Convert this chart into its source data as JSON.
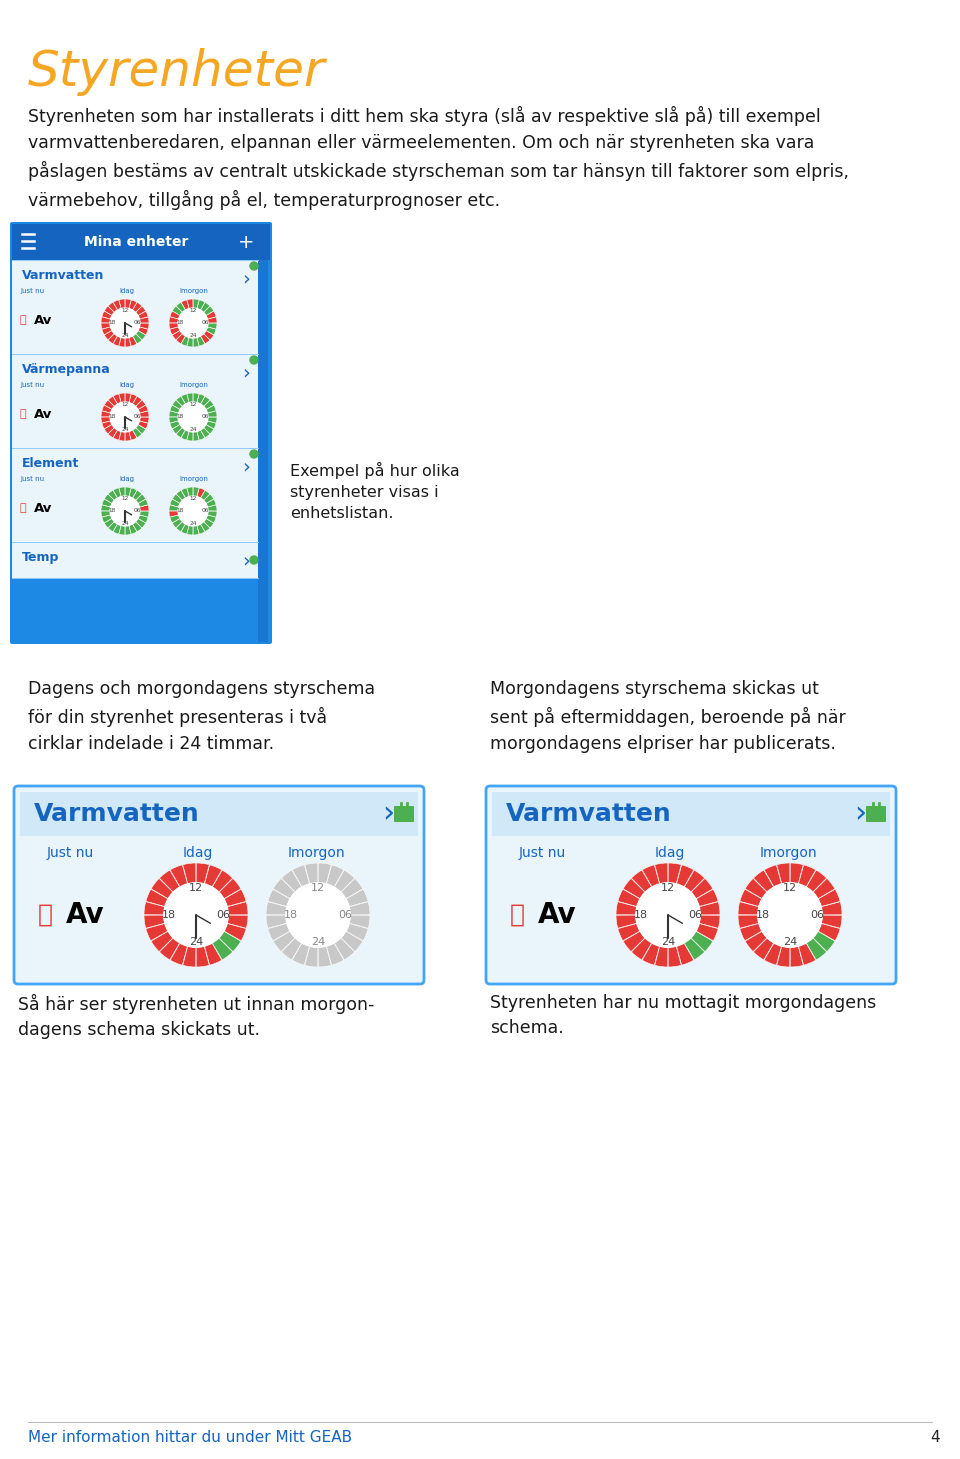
{
  "title": "Styrenheter",
  "title_color": "#F5A623",
  "body_text1": "Styrenheten som har installerats i ditt hem ska styra (slå av respektive slå på) till exempel\nvarmvattenberedaren, elpannan eller värmeelementen. Om och när styrenheten ska vara\npåslagen bestäms av centralt utskickade styrscheman som tar hänsyn till faktorer som elpris,\nvärmebehov, tillgång på el, temperaturprognoser etc.",
  "phone_header_text": "Mina enheter",
  "caption_text": "Exempel på hur olika\nstyrenheter visas i\nenhetslistan.",
  "section2_left_text": "Dagens och morgondagens styrschema\nför din styrenhet presenteras i två\ncirklar indelade i 24 timmar.",
  "section2_right_text": "Morgondagens styrschema skickas ut\nsent på eftermiddagen, beroende på när\nmorgondagens elpriser har publicerats.",
  "card1_title": "Varmvatten",
  "card2_title": "Varmvatten",
  "caption_bottom_left": "Så här ser styrenheten ut innan morgon-\ndagens schema skickats ut.",
  "caption_bottom_right": "Styrenheten har nu mottagit morgondagens\nschema.",
  "footer_text": "Mer information hittar du under Mitt GEAB",
  "footer_page": "4",
  "footer_color": "#1565C0",
  "phone_rows": [
    {
      "name": "Varmvatten",
      "idag": [
        0,
        0,
        1,
        1,
        0,
        0,
        0,
        0,
        0,
        0,
        0,
        0,
        0,
        0,
        0,
        0,
        0,
        0,
        0,
        0,
        0,
        0,
        0,
        0
      ],
      "imorgon": [
        1,
        1,
        0,
        0,
        1,
        1,
        0,
        0,
        1,
        1,
        1,
        1,
        0,
        0,
        1,
        1,
        0,
        0,
        0,
        0,
        0,
        0,
        1,
        1
      ],
      "green_dot": true
    },
    {
      "name": "Värmepanna",
      "idag": [
        0,
        0,
        1,
        1,
        0,
        0,
        0,
        0,
        0,
        0,
        0,
        0,
        0,
        0,
        0,
        0,
        0,
        0,
        0,
        0,
        0,
        0,
        0,
        0
      ],
      "imorgon": [
        1,
        1,
        1,
        1,
        1,
        1,
        1,
        1,
        1,
        1,
        1,
        1,
        1,
        1,
        1,
        1,
        1,
        1,
        1,
        1,
        1,
        1,
        1,
        1
      ],
      "green_dot": true
    },
    {
      "name": "Element",
      "idag": [
        1,
        1,
        1,
        1,
        1,
        1,
        0,
        1,
        1,
        1,
        1,
        1,
        1,
        1,
        1,
        1,
        1,
        1,
        1,
        1,
        1,
        1,
        1,
        1
      ],
      "imorgon": [
        1,
        1,
        1,
        1,
        1,
        1,
        1,
        1,
        1,
        1,
        0,
        1,
        1,
        1,
        1,
        1,
        1,
        1,
        0,
        1,
        1,
        1,
        1,
        1
      ],
      "green_dot": true
    },
    {
      "name": "Temp",
      "idag": null,
      "imorgon": null,
      "green_dot": true
    }
  ],
  "card1_idag": [
    0,
    0,
    1,
    1,
    0,
    0,
    0,
    0,
    0,
    0,
    0,
    0,
    0,
    0,
    0,
    0,
    0,
    0,
    0,
    0,
    0,
    0,
    0,
    0
  ],
  "card1_imorgon_gray": true,
  "card2_idag": [
    0,
    0,
    1,
    1,
    0,
    0,
    0,
    0,
    0,
    0,
    0,
    0,
    0,
    0,
    0,
    0,
    0,
    0,
    0,
    0,
    0,
    0,
    0,
    0
  ],
  "card2_imorgon": [
    0,
    0,
    1,
    1,
    0,
    0,
    0,
    0,
    0,
    0,
    0,
    0,
    0,
    0,
    0,
    0,
    0,
    0,
    0,
    0,
    0,
    0,
    0,
    0
  ]
}
